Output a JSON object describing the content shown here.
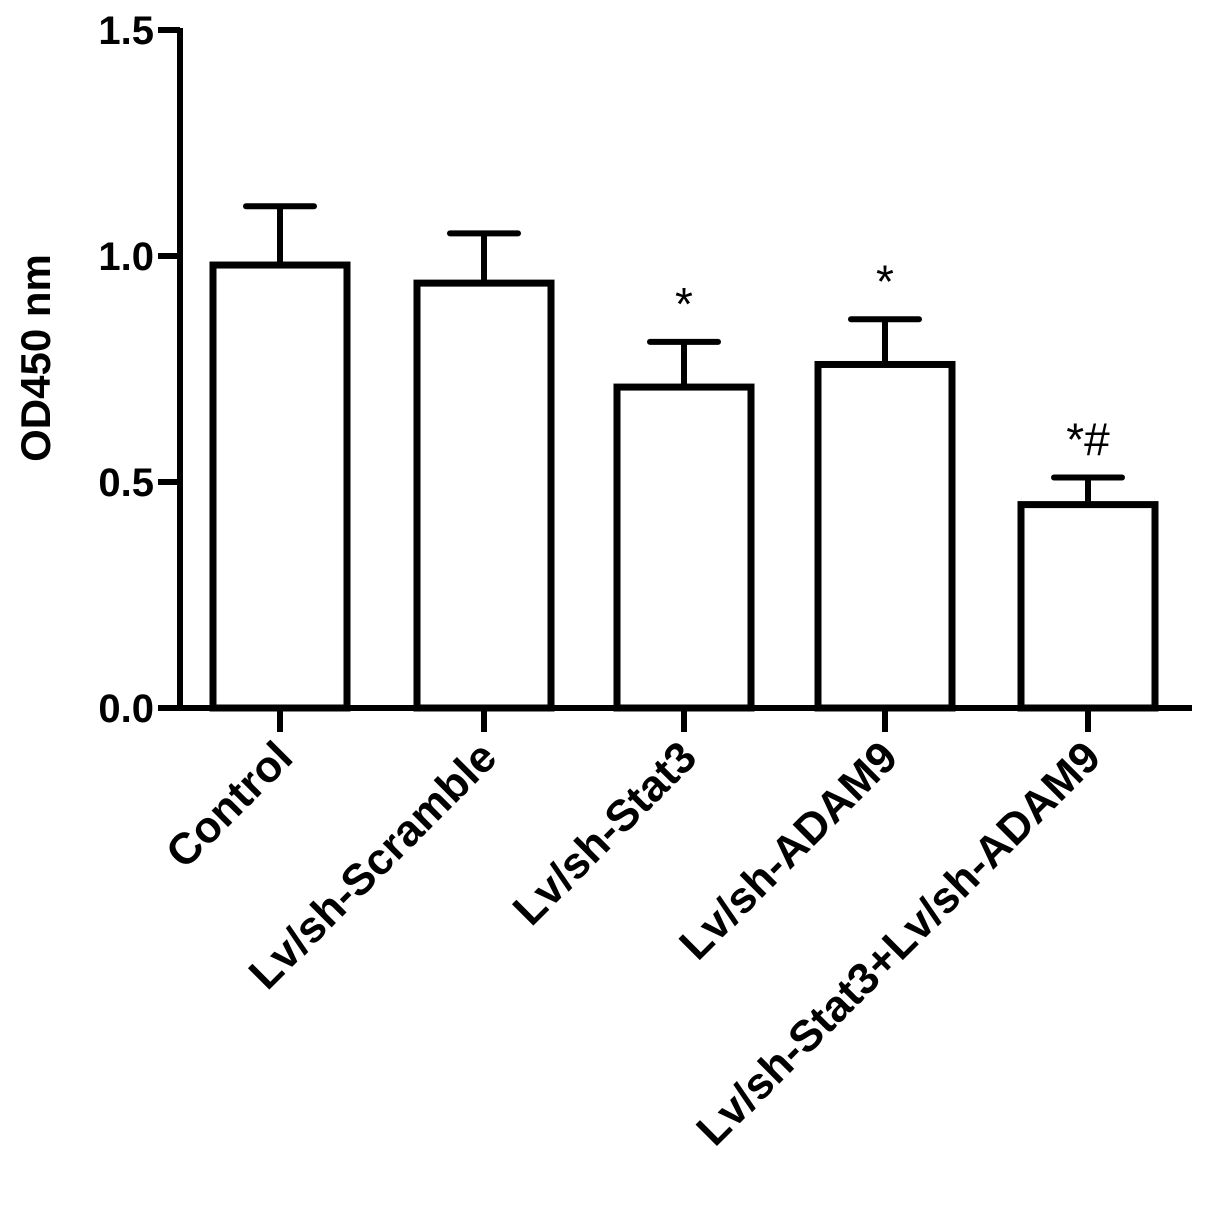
{
  "chart_data": {
    "type": "bar",
    "categories": [
      "Control",
      "Lv/sh-Scramble",
      "Lv/sh-Stat3",
      "Lv/sh-ADAM9",
      "Lv/sh-Stat3+Lv/sh-ADAM9"
    ],
    "values": [
      0.98,
      0.94,
      0.71,
      0.76,
      0.45
    ],
    "error": [
      0.13,
      0.11,
      0.1,
      0.1,
      0.06
    ],
    "annotations": [
      "",
      "",
      "*",
      "*",
      "*#"
    ],
    "ylabel": "OD450 nm",
    "xlabel": "",
    "ylim": [
      0.0,
      1.5
    ],
    "yticks": [
      "0.0",
      "0.5",
      "1.0",
      "1.5"
    ],
    "bar_fill": "#ffffff",
    "bar_stroke": "#000000",
    "grid": false,
    "legend": "none"
  }
}
